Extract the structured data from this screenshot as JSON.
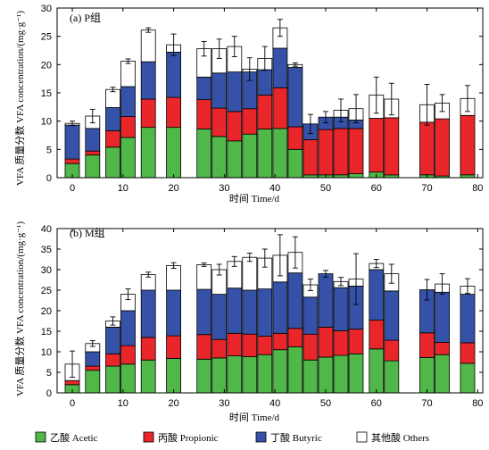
{
  "legend": [
    {
      "label": "乙酸 Acetic",
      "color": "#4fb848"
    },
    {
      "label": "丙酸 Propionic",
      "color": "#e9262a"
    },
    {
      "label": "丁酸 Butyric",
      "color": "#3652a8"
    },
    {
      "label": "其他酸 Others",
      "color": "#ffffff"
    }
  ],
  "chart_data": [
    {
      "type": "bar",
      "stacked": true,
      "panel_label": "(a) P组",
      "xlabel": "时间 Time/d",
      "ylabel": "VFA 质量分数 VFA concentration/(mg·g⁻¹)",
      "xlim": [
        -3,
        81
      ],
      "ylim": [
        0,
        30
      ],
      "xticks": [
        0,
        10,
        20,
        30,
        40,
        50,
        60,
        70,
        80
      ],
      "yticks": [
        0,
        5,
        10,
        15,
        20,
        25,
        30
      ],
      "x": [
        0,
        4,
        8,
        11,
        15,
        20,
        26,
        29,
        32,
        35,
        38,
        41,
        44,
        47,
        50,
        53,
        56,
        60,
        63,
        70,
        73,
        78
      ],
      "series": [
        {
          "name": "乙酸 Acetic",
          "values": [
            2.5,
            4.0,
            5.4,
            7.1,
            8.9,
            8.9,
            8.6,
            7.3,
            6.5,
            7.7,
            8.6,
            8.7,
            5.0,
            0.5,
            0.5,
            0.5,
            0.7,
            1.0,
            0.5,
            0.5,
            0.3,
            0.5
          ]
        },
        {
          "name": "丙酸 Propionic",
          "values": [
            0.8,
            0.7,
            2.9,
            3.7,
            5.0,
            5.3,
            5.2,
            5.0,
            5.2,
            4.5,
            6.0,
            7.2,
            4.0,
            6.2,
            8.0,
            8.2,
            8.0,
            9.5,
            10.1,
            9.3,
            10.1,
            10.5
          ]
        },
        {
          "name": "丁酸 Butyric",
          "values": [
            6.0,
            4.0,
            4.1,
            5.3,
            6.6,
            8.0,
            4.0,
            6.2,
            7.0,
            6.5,
            4.5,
            7.0,
            10.5,
            2.8,
            2.2,
            2.0,
            1.5,
            0.0,
            0.0,
            0.0,
            0.0,
            0.0
          ]
        },
        {
          "name": "其他酸 Others",
          "values": [
            0.3,
            2.2,
            3.2,
            4.5,
            5.6,
            1.3,
            5.0,
            4.3,
            4.5,
            0.5,
            2.0,
            3.6,
            0.5,
            0.0,
            0.0,
            1.2,
            2.0,
            4.1,
            3.3,
            3.1,
            2.8,
            3.0
          ]
        }
      ],
      "error": [
        0.4,
        1.2,
        0.4,
        0.4,
        0.4,
        1.9,
        1.3,
        1.7,
        1.8,
        2.0,
        2.1,
        1.5,
        0.3,
        1.7,
        1.0,
        2.0,
        2.5,
        3.2,
        2.8,
        3.6,
        1.5,
        2.3
      ]
    },
    {
      "type": "bar",
      "stacked": true,
      "panel_label": "(b) M组",
      "xlabel": "时间 Time/d",
      "ylabel": "VFA 质量分数 VFA concentration/(mg·g⁻¹)",
      "xlim": [
        -3,
        81
      ],
      "ylim": [
        0,
        40
      ],
      "xticks": [
        0,
        10,
        20,
        30,
        40,
        50,
        60,
        70,
        80
      ],
      "yticks": [
        0,
        5,
        10,
        15,
        20,
        25,
        30,
        35,
        40
      ],
      "x": [
        0,
        4,
        8,
        11,
        15,
        20,
        26,
        29,
        32,
        35,
        38,
        41,
        44,
        47,
        50,
        53,
        56,
        60,
        63,
        70,
        73,
        78
      ],
      "series": [
        {
          "name": "乙酸 Acetic",
          "values": [
            2.0,
            5.5,
            6.5,
            7.0,
            8.0,
            8.4,
            8.2,
            8.5,
            9.0,
            8.8,
            9.3,
            10.5,
            11.2,
            8.0,
            8.7,
            9.1,
            9.5,
            10.7,
            7.8,
            8.6,
            9.3,
            7.2
          ]
        },
        {
          "name": "丙酸 Propionic",
          "values": [
            1.0,
            1.0,
            3.0,
            4.5,
            5.5,
            5.5,
            6.0,
            4.5,
            5.5,
            5.5,
            4.5,
            4.0,
            4.5,
            6.3,
            7.3,
            6.0,
            6.0,
            7.0,
            5.0,
            6.0,
            3.0,
            5.0
          ]
        },
        {
          "name": "丁酸 Butyric",
          "values": [
            0.0,
            3.5,
            6.5,
            8.5,
            11.5,
            11.1,
            11.0,
            11.0,
            11.0,
            10.7,
            11.5,
            12.5,
            13.5,
            9.0,
            13.0,
            10.5,
            10.5,
            12.3,
            12.0,
            10.5,
            12.2,
            11.8
          ]
        },
        {
          "name": "其他酸 Others",
          "values": [
            4.0,
            2.0,
            1.5,
            4.0,
            3.8,
            6.0,
            6.0,
            6.0,
            6.5,
            8.0,
            7.5,
            6.5,
            5.0,
            3.0,
            0.0,
            1.5,
            1.7,
            1.5,
            4.2,
            0.0,
            2.0,
            2.0
          ]
        }
      ],
      "error": [
        3.2,
        0.7,
        1.0,
        1.3,
        0.6,
        0.7,
        0.4,
        1.3,
        1.2,
        1.0,
        2.2,
        5.0,
        3.8,
        1.4,
        0.8,
        1.0,
        6.2,
        1.0,
        2.3,
        2.5,
        2.5,
        1.8
      ]
    }
  ]
}
